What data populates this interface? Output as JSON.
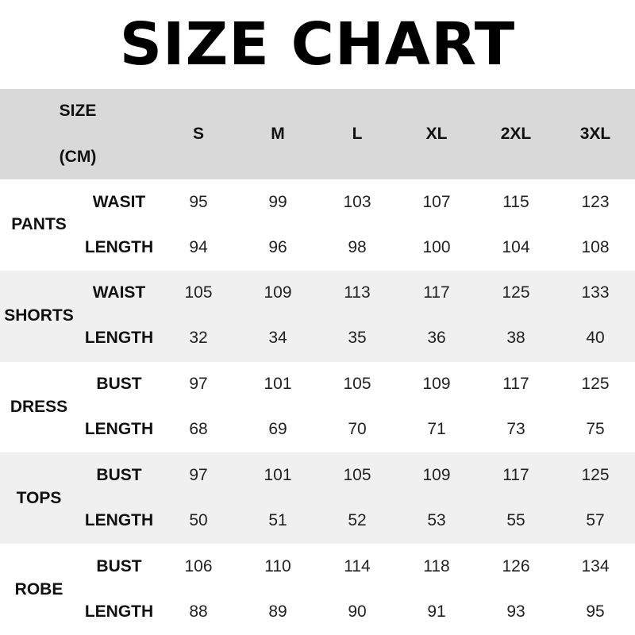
{
  "title": "SIZE CHART",
  "header": {
    "size_label": "SIZE",
    "unit_label": "(CM)",
    "sizes": [
      "S",
      "M",
      "L",
      "XL",
      "2XL",
      "3XL"
    ]
  },
  "colors": {
    "header_bg": "#d9d9d9",
    "alt_row_bg": "#f0f0f0"
  },
  "groups": [
    {
      "name": "PANTS",
      "rows": [
        {
          "label": "WASIT",
          "values": [
            "95",
            "99",
            "103",
            "107",
            "115",
            "123"
          ]
        },
        {
          "label": "LENGTH",
          "values": [
            "94",
            "96",
            "98",
            "100",
            "104",
            "108"
          ]
        }
      ]
    },
    {
      "name": "SHORTS",
      "rows": [
        {
          "label": "WAIST",
          "values": [
            "105",
            "109",
            "113",
            "117",
            "125",
            "133"
          ]
        },
        {
          "label": "LENGTH",
          "values": [
            "32",
            "34",
            "35",
            "36",
            "38",
            "40"
          ]
        }
      ]
    },
    {
      "name": "DRESS",
      "rows": [
        {
          "label": "BUST",
          "values": [
            "97",
            "101",
            "105",
            "109",
            "117",
            "125"
          ]
        },
        {
          "label": "LENGTH",
          "values": [
            "68",
            "69",
            "70",
            "71",
            "73",
            "75"
          ]
        }
      ]
    },
    {
      "name": "TOPS",
      "rows": [
        {
          "label": "BUST",
          "values": [
            "97",
            "101",
            "105",
            "109",
            "117",
            "125"
          ]
        },
        {
          "label": "LENGTH",
          "values": [
            "50",
            "51",
            "52",
            "53",
            "55",
            "57"
          ]
        }
      ]
    },
    {
      "name": "ROBE",
      "rows": [
        {
          "label": "BUST",
          "values": [
            "106",
            "110",
            "114",
            "118",
            "126",
            "134"
          ]
        },
        {
          "label": "LENGTH",
          "values": [
            "88",
            "89",
            "90",
            "91",
            "93",
            "95"
          ]
        }
      ]
    }
  ]
}
